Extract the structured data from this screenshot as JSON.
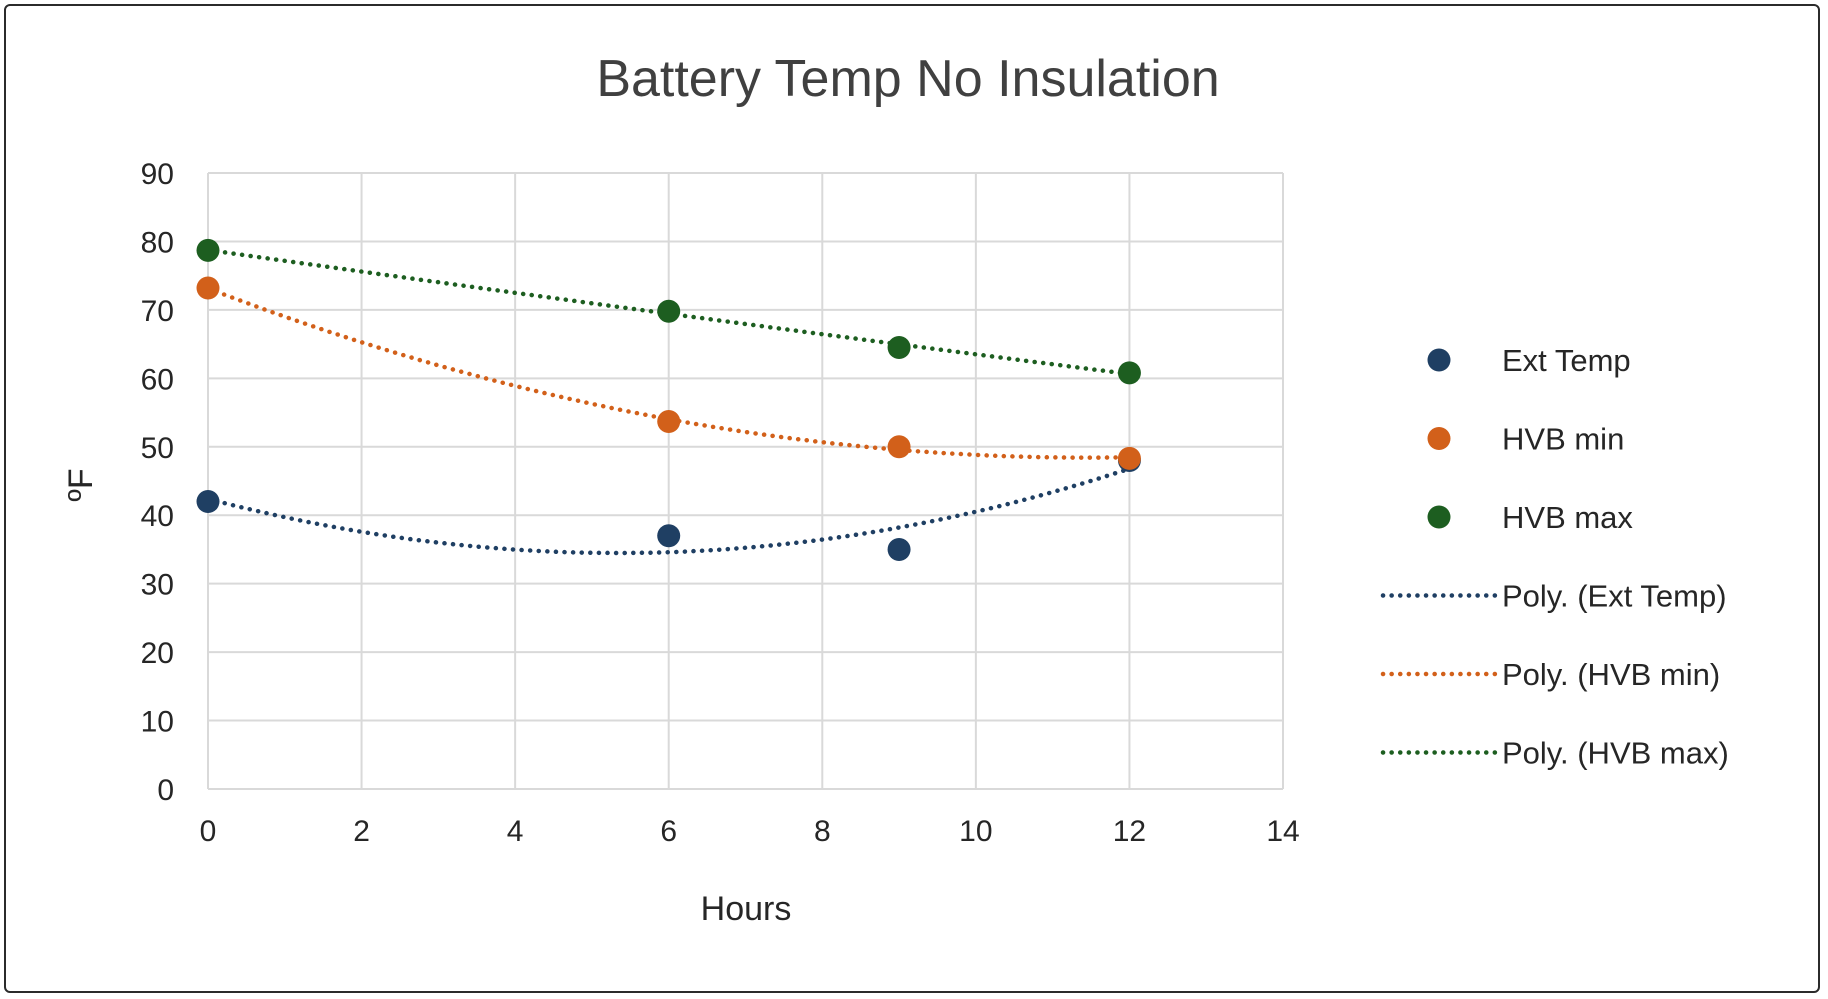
{
  "chart_data": {
    "type": "scatter",
    "title": "Battery Temp No Insulation",
    "xlabel": "Hours",
    "ylabel": "ºF",
    "xlim": [
      0,
      14
    ],
    "ylim": [
      0,
      90
    ],
    "xticks": [
      0,
      2,
      4,
      6,
      8,
      10,
      12,
      14
    ],
    "yticks": [
      0,
      10,
      20,
      30,
      40,
      50,
      60,
      70,
      80,
      90
    ],
    "grid": true,
    "legend_position": "right",
    "series": [
      {
        "name": "Ext Temp",
        "color": "#1f3f63",
        "x": [
          0,
          6,
          9,
          12
        ],
        "y": [
          42,
          37,
          35,
          48
        ],
        "trendline": "poly2"
      },
      {
        "name": "HVB min",
        "color": "#d2601a",
        "x": [
          0,
          6,
          9,
          12
        ],
        "y": [
          73.2,
          53.7,
          50,
          48.3
        ],
        "trendline": "poly2"
      },
      {
        "name": "HVB max",
        "color": "#1d5e20",
        "x": [
          0,
          6,
          9,
          12
        ],
        "y": [
          78.7,
          69.8,
          64.5,
          60.8
        ],
        "trendline": "poly2"
      }
    ],
    "legend": [
      {
        "label": "Ext Temp",
        "kind": "marker",
        "color": "#1f3f63"
      },
      {
        "label": "HVB min",
        "kind": "marker",
        "color": "#d2601a"
      },
      {
        "label": "HVB max",
        "kind": "marker",
        "color": "#1d5e20"
      },
      {
        "label": "Poly. (Ext Temp)",
        "kind": "line",
        "color": "#1f3f63"
      },
      {
        "label": "Poly. (HVB min)",
        "kind": "line",
        "color": "#d2601a"
      },
      {
        "label": "Poly. (HVB max)",
        "kind": "line",
        "color": "#1d5e20"
      }
    ]
  }
}
